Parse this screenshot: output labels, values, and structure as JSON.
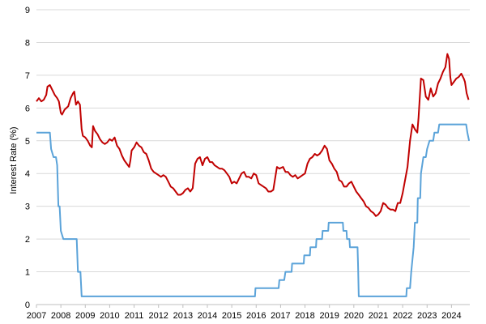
{
  "chart_data": {
    "type": "line",
    "title": "",
    "xlabel": "",
    "ylabel": "Interest Rate (%)",
    "xlim": [
      2007.0,
      2024.75
    ],
    "ylim": [
      0,
      9
    ],
    "x_ticks": [
      "2007",
      "2008",
      "2009",
      "2010",
      "2011",
      "2012",
      "2013",
      "2014",
      "2015",
      "2016",
      "2017",
      "2018",
      "2019",
      "2020",
      "2021",
      "2022",
      "2023",
      "2024"
    ],
    "y_ticks": [
      "0",
      "1",
      "2",
      "3",
      "4",
      "5",
      "6",
      "7",
      "8",
      "9"
    ],
    "grid": "horizontal",
    "legend": "none",
    "series": [
      {
        "color": "#c00000",
        "points": [
          [
            2007.0,
            6.2
          ],
          [
            2007.1,
            6.3
          ],
          [
            2007.2,
            6.2
          ],
          [
            2007.3,
            6.25
          ],
          [
            2007.4,
            6.4
          ],
          [
            2007.45,
            6.65
          ],
          [
            2007.55,
            6.7
          ],
          [
            2007.65,
            6.55
          ],
          [
            2007.75,
            6.4
          ],
          [
            2007.85,
            6.3
          ],
          [
            2007.92,
            6.2
          ],
          [
            2008.0,
            5.85
          ],
          [
            2008.05,
            5.8
          ],
          [
            2008.15,
            5.95
          ],
          [
            2008.3,
            6.05
          ],
          [
            2008.4,
            6.3
          ],
          [
            2008.5,
            6.45
          ],
          [
            2008.55,
            6.5
          ],
          [
            2008.62,
            6.1
          ],
          [
            2008.7,
            6.2
          ],
          [
            2008.78,
            6.1
          ],
          [
            2008.85,
            5.35
          ],
          [
            2008.9,
            5.15
          ],
          [
            2009.0,
            5.1
          ],
          [
            2009.1,
            5.0
          ],
          [
            2009.2,
            4.85
          ],
          [
            2009.27,
            4.8
          ],
          [
            2009.32,
            5.45
          ],
          [
            2009.4,
            5.3
          ],
          [
            2009.5,
            5.2
          ],
          [
            2009.6,
            5.05
          ],
          [
            2009.7,
            4.95
          ],
          [
            2009.8,
            4.9
          ],
          [
            2009.9,
            4.95
          ],
          [
            2010.0,
            5.05
          ],
          [
            2010.1,
            5.0
          ],
          [
            2010.2,
            5.1
          ],
          [
            2010.3,
            4.85
          ],
          [
            2010.4,
            4.75
          ],
          [
            2010.5,
            4.55
          ],
          [
            2010.6,
            4.4
          ],
          [
            2010.7,
            4.3
          ],
          [
            2010.8,
            4.2
          ],
          [
            2010.85,
            4.4
          ],
          [
            2010.9,
            4.7
          ],
          [
            2011.0,
            4.8
          ],
          [
            2011.1,
            4.95
          ],
          [
            2011.2,
            4.85
          ],
          [
            2011.3,
            4.8
          ],
          [
            2011.4,
            4.65
          ],
          [
            2011.5,
            4.6
          ],
          [
            2011.6,
            4.4
          ],
          [
            2011.7,
            4.15
          ],
          [
            2011.8,
            4.05
          ],
          [
            2011.9,
            4.0
          ],
          [
            2012.0,
            3.95
          ],
          [
            2012.1,
            3.9
          ],
          [
            2012.2,
            3.95
          ],
          [
            2012.3,
            3.9
          ],
          [
            2012.4,
            3.75
          ],
          [
            2012.5,
            3.6
          ],
          [
            2012.6,
            3.55
          ],
          [
            2012.7,
            3.45
          ],
          [
            2012.8,
            3.35
          ],
          [
            2012.9,
            3.35
          ],
          [
            2013.0,
            3.4
          ],
          [
            2013.1,
            3.5
          ],
          [
            2013.2,
            3.55
          ],
          [
            2013.3,
            3.45
          ],
          [
            2013.4,
            3.55
          ],
          [
            2013.5,
            4.3
          ],
          [
            2013.6,
            4.45
          ],
          [
            2013.7,
            4.5
          ],
          [
            2013.8,
            4.25
          ],
          [
            2013.9,
            4.45
          ],
          [
            2014.0,
            4.5
          ],
          [
            2014.1,
            4.35
          ],
          [
            2014.2,
            4.35
          ],
          [
            2014.3,
            4.25
          ],
          [
            2014.4,
            4.2
          ],
          [
            2014.5,
            4.15
          ],
          [
            2014.6,
            4.15
          ],
          [
            2014.7,
            4.1
          ],
          [
            2014.8,
            4.0
          ],
          [
            2014.9,
            3.9
          ],
          [
            2015.0,
            3.7
          ],
          [
            2015.1,
            3.75
          ],
          [
            2015.2,
            3.7
          ],
          [
            2015.3,
            3.85
          ],
          [
            2015.4,
            4.0
          ],
          [
            2015.5,
            4.05
          ],
          [
            2015.6,
            3.9
          ],
          [
            2015.7,
            3.9
          ],
          [
            2015.8,
            3.85
          ],
          [
            2015.9,
            4.0
          ],
          [
            2016.0,
            3.95
          ],
          [
            2016.1,
            3.7
          ],
          [
            2016.2,
            3.65
          ],
          [
            2016.3,
            3.6
          ],
          [
            2016.4,
            3.55
          ],
          [
            2016.5,
            3.45
          ],
          [
            2016.6,
            3.45
          ],
          [
            2016.7,
            3.5
          ],
          [
            2016.85,
            4.2
          ],
          [
            2016.95,
            4.15
          ],
          [
            2017.1,
            4.2
          ],
          [
            2017.2,
            4.05
          ],
          [
            2017.3,
            4.05
          ],
          [
            2017.4,
            3.95
          ],
          [
            2017.5,
            3.9
          ],
          [
            2017.6,
            3.95
          ],
          [
            2017.7,
            3.85
          ],
          [
            2017.8,
            3.9
          ],
          [
            2017.9,
            3.95
          ],
          [
            2018.0,
            4.0
          ],
          [
            2018.1,
            4.3
          ],
          [
            2018.2,
            4.45
          ],
          [
            2018.3,
            4.5
          ],
          [
            2018.4,
            4.6
          ],
          [
            2018.5,
            4.55
          ],
          [
            2018.6,
            4.6
          ],
          [
            2018.7,
            4.7
          ],
          [
            2018.8,
            4.85
          ],
          [
            2018.9,
            4.75
          ],
          [
            2019.0,
            4.4
          ],
          [
            2019.1,
            4.3
          ],
          [
            2019.2,
            4.15
          ],
          [
            2019.3,
            4.05
          ],
          [
            2019.4,
            3.8
          ],
          [
            2019.5,
            3.75
          ],
          [
            2019.6,
            3.6
          ],
          [
            2019.7,
            3.6
          ],
          [
            2019.8,
            3.7
          ],
          [
            2019.9,
            3.75
          ],
          [
            2020.0,
            3.6
          ],
          [
            2020.1,
            3.45
          ],
          [
            2020.2,
            3.35
          ],
          [
            2020.3,
            3.25
          ],
          [
            2020.4,
            3.15
          ],
          [
            2020.5,
            3.0
          ],
          [
            2020.6,
            2.95
          ],
          [
            2020.7,
            2.85
          ],
          [
            2020.8,
            2.8
          ],
          [
            2020.9,
            2.7
          ],
          [
            2021.0,
            2.75
          ],
          [
            2021.1,
            2.85
          ],
          [
            2021.2,
            3.1
          ],
          [
            2021.3,
            3.05
          ],
          [
            2021.4,
            2.95
          ],
          [
            2021.5,
            2.9
          ],
          [
            2021.6,
            2.9
          ],
          [
            2021.7,
            2.85
          ],
          [
            2021.8,
            3.1
          ],
          [
            2021.9,
            3.1
          ],
          [
            2022.0,
            3.4
          ],
          [
            2022.1,
            3.8
          ],
          [
            2022.2,
            4.2
          ],
          [
            2022.3,
            5.0
          ],
          [
            2022.4,
            5.5
          ],
          [
            2022.5,
            5.35
          ],
          [
            2022.6,
            5.25
          ],
          [
            2022.65,
            5.7
          ],
          [
            2022.7,
            6.3
          ],
          [
            2022.75,
            6.9
          ],
          [
            2022.85,
            6.85
          ],
          [
            2022.95,
            6.35
          ],
          [
            2023.05,
            6.25
          ],
          [
            2023.15,
            6.6
          ],
          [
            2023.25,
            6.35
          ],
          [
            2023.35,
            6.45
          ],
          [
            2023.45,
            6.75
          ],
          [
            2023.55,
            6.9
          ],
          [
            2023.65,
            7.1
          ],
          [
            2023.75,
            7.25
          ],
          [
            2023.83,
            7.65
          ],
          [
            2023.9,
            7.5
          ],
          [
            2023.95,
            6.95
          ],
          [
            2024.0,
            6.7
          ],
          [
            2024.1,
            6.8
          ],
          [
            2024.2,
            6.9
          ],
          [
            2024.3,
            6.95
          ],
          [
            2024.4,
            7.05
          ],
          [
            2024.5,
            6.9
          ],
          [
            2024.55,
            6.8
          ],
          [
            2024.62,
            6.45
          ],
          [
            2024.7,
            6.25
          ]
        ]
      },
      {
        "color": "#5ba3d9",
        "points": [
          [
            2007.0,
            5.25
          ],
          [
            2007.55,
            5.25
          ],
          [
            2007.6,
            4.75
          ],
          [
            2007.7,
            4.5
          ],
          [
            2007.8,
            4.5
          ],
          [
            2007.85,
            4.25
          ],
          [
            2007.9,
            3.0
          ],
          [
            2007.95,
            3.0
          ],
          [
            2008.0,
            2.25
          ],
          [
            2008.1,
            2.0
          ],
          [
            2008.65,
            2.0
          ],
          [
            2008.7,
            1.0
          ],
          [
            2008.8,
            1.0
          ],
          [
            2008.85,
            0.25
          ],
          [
            2015.95,
            0.25
          ],
          [
            2015.97,
            0.5
          ],
          [
            2016.92,
            0.5
          ],
          [
            2016.95,
            0.75
          ],
          [
            2017.15,
            0.75
          ],
          [
            2017.2,
            1.0
          ],
          [
            2017.45,
            1.0
          ],
          [
            2017.47,
            1.25
          ],
          [
            2017.95,
            1.25
          ],
          [
            2017.97,
            1.5
          ],
          [
            2018.2,
            1.5
          ],
          [
            2018.22,
            1.75
          ],
          [
            2018.45,
            1.75
          ],
          [
            2018.47,
            2.0
          ],
          [
            2018.7,
            2.0
          ],
          [
            2018.72,
            2.25
          ],
          [
            2018.95,
            2.25
          ],
          [
            2018.97,
            2.5
          ],
          [
            2019.55,
            2.5
          ],
          [
            2019.57,
            2.25
          ],
          [
            2019.7,
            2.25
          ],
          [
            2019.72,
            2.0
          ],
          [
            2019.82,
            2.0
          ],
          [
            2019.84,
            1.75
          ],
          [
            2020.15,
            1.75
          ],
          [
            2020.17,
            1.25
          ],
          [
            2020.2,
            0.25
          ],
          [
            2022.15,
            0.25
          ],
          [
            2022.17,
            0.5
          ],
          [
            2022.3,
            0.5
          ],
          [
            2022.35,
            1.0
          ],
          [
            2022.45,
            1.75
          ],
          [
            2022.5,
            2.5
          ],
          [
            2022.6,
            2.5
          ],
          [
            2022.62,
            3.25
          ],
          [
            2022.72,
            3.25
          ],
          [
            2022.75,
            4.0
          ],
          [
            2022.85,
            4.5
          ],
          [
            2022.95,
            4.5
          ],
          [
            2023.0,
            4.75
          ],
          [
            2023.1,
            5.0
          ],
          [
            2023.25,
            5.0
          ],
          [
            2023.3,
            5.25
          ],
          [
            2023.45,
            5.25
          ],
          [
            2023.5,
            5.5
          ],
          [
            2024.6,
            5.5
          ],
          [
            2024.65,
            5.25
          ],
          [
            2024.72,
            5.0
          ]
        ]
      }
    ]
  }
}
